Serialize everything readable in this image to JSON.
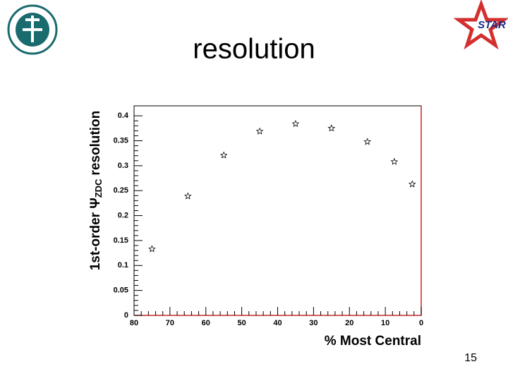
{
  "title": "resolution",
  "page_number": "15",
  "logo_text": "STAR",
  "chart_data": {
    "type": "scatter",
    "x_label": "% Most Central",
    "y_label": [
      "1st-order Ψ",
      "ZDC",
      "resolution"
    ],
    "x": [
      75,
      65,
      55,
      45,
      35,
      25,
      15,
      7.5,
      2.5
    ],
    "values": [
      0.133,
      0.239,
      0.321,
      0.369,
      0.384,
      0.375,
      0.348,
      0.308,
      0.263
    ],
    "color": "#000000",
    "xlim": [
      80,
      0
    ],
    "xticks": [
      80,
      70,
      60,
      50,
      40,
      30,
      20,
      10,
      0
    ],
    "ylim": [
      0,
      0.42
    ],
    "yticks": [
      0,
      0.05,
      0.1,
      0.15,
      0.2,
      0.25,
      0.3,
      0.35,
      0.4
    ]
  }
}
